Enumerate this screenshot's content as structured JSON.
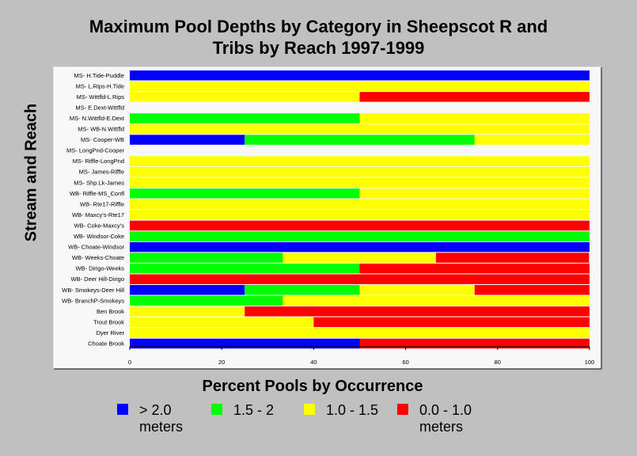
{
  "chart_data": {
    "type": "bar",
    "orientation": "horizontal",
    "stacked": true,
    "title_line1": "Maximum Pool Depths by Category in Sheepscot R and",
    "title_line2": "Tribs by Reach 1997-1999",
    "xlabel": "Percent Pools by Occurrence",
    "ylabel": "Stream and Reach",
    "xlim": [
      0,
      100
    ],
    "xticks": [
      "0",
      "20",
      "40",
      "60",
      "80",
      "100"
    ],
    "grid": false,
    "legend_position": "bottom",
    "categories": [
      "MS- H.Tide-Puddle",
      "MS- L.Rips-H.Tide",
      "MS- Wittfld-L.Rips",
      "MS- E.Dext-Wittfld",
      "MS- N.Wittfld-E.Dext",
      "MS- WB-N.Wittfld",
      "MS- Cooper-WB",
      "MS- LongPnd-Cooper",
      "MS- Riffle-LongPnd",
      "MS- James-Riffle",
      "MS- Shp.Lk-James",
      "WB- Riffle-MS_Confl",
      "WB- Rte17-Riffle",
      "WB- Maxcy's-Rte17",
      "WB- Coke-Maxcy's",
      "WB- Windsor-Coke",
      "WB- Choate-Windsor",
      "WB- Weeks-Choate",
      "WB- Dirigo-Weeks",
      "WB- Deer Hill-Dirigo",
      "WB- Smokeys-Deer Hill",
      "WB- BranchP-Smokeys",
      "Ben Brook",
      "Trout Brook",
      "Dyer River",
      "Choate Brook"
    ],
    "series": [
      {
        "name": "> 2.0 meters",
        "color": "#0000ff",
        "values": [
          100,
          0,
          0,
          0,
          0,
          0,
          25,
          0,
          0,
          0,
          0,
          0,
          0,
          0,
          0,
          0,
          100,
          0,
          0,
          0,
          25,
          0,
          0,
          0,
          0,
          50
        ]
      },
      {
        "name": "1.5 - 2",
        "color": "#00ff00",
        "values": [
          0,
          0,
          0,
          0,
          50,
          0,
          50,
          0,
          0,
          0,
          0,
          50,
          0,
          0,
          0,
          100,
          0,
          33.3,
          50,
          0,
          25,
          33.3,
          0,
          0,
          0,
          0
        ]
      },
      {
        "name": "1.0 - 1.5",
        "color": "#ffff00",
        "values": [
          0,
          100,
          50,
          0,
          50,
          100,
          25,
          0,
          100,
          100,
          100,
          50,
          100,
          100,
          0,
          0,
          0,
          33.3,
          0,
          0,
          25,
          66.7,
          25,
          40,
          100,
          0
        ]
      },
      {
        "name": "0.0 - 1.0 meters",
        "color": "#ff0000",
        "values": [
          0,
          0,
          50,
          0,
          0,
          0,
          0,
          0,
          0,
          0,
          0,
          0,
          0,
          0,
          100,
          0,
          0,
          33.3,
          50,
          100,
          25,
          0,
          75,
          60,
          0,
          50
        ]
      }
    ]
  },
  "legend": {
    "items": [
      {
        "line1": "> 2.0",
        "line2": "meters",
        "color": "#0000ff"
      },
      {
        "line1": "1.5 - 2",
        "line2": "",
        "color": "#00ff00"
      },
      {
        "line1": "1.0 - 1.5",
        "line2": "",
        "color": "#ffff00"
      },
      {
        "line1": "0.0 - 1.0",
        "line2": "meters",
        "color": "#ff0000"
      }
    ]
  }
}
